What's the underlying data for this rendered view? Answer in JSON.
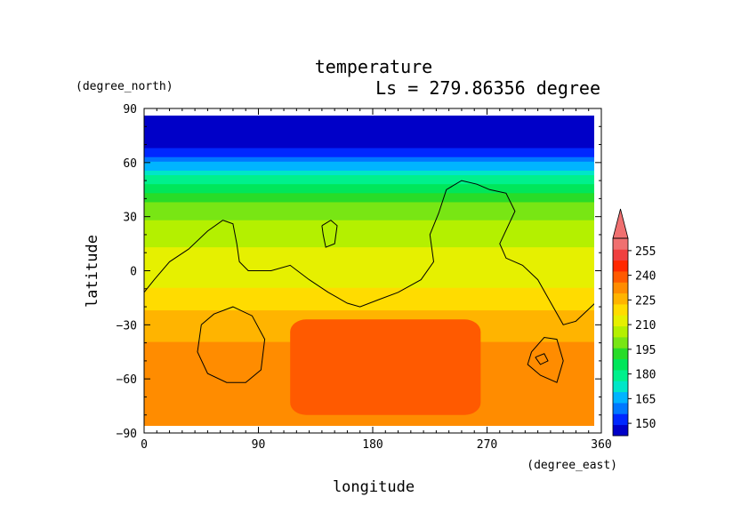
{
  "chart_data": {
    "type": "heatmap",
    "title": "temperature",
    "subtitle": "Ls = 279.86356 degree",
    "xlabel": "longitude",
    "ylabel": "latitude",
    "x_unit": "(degree_east)",
    "y_unit": "(degree_north)",
    "xlim": [
      0,
      360
    ],
    "ylim": [
      -90,
      90
    ],
    "x_ticks": [
      "0",
      "90",
      "180",
      "270",
      "360"
    ],
    "y_ticks": [
      "90",
      "60",
      "30",
      "0",
      "−30",
      "−60",
      "−90"
    ],
    "lat_profile": [
      {
        "lat": 85,
        "value": 145
      },
      {
        "lat": 70,
        "value": 147
      },
      {
        "lat": 65,
        "value": 152
      },
      {
        "lat": 60,
        "value": 162
      },
      {
        "lat": 55,
        "value": 172
      },
      {
        "lat": 50,
        "value": 180
      },
      {
        "lat": 45,
        "value": 188
      },
      {
        "lat": 40,
        "value": 195
      },
      {
        "lat": 30,
        "value": 202
      },
      {
        "lat": 20,
        "value": 208
      },
      {
        "lat": 10,
        "value": 210
      },
      {
        "lat": 0,
        "value": 213
      },
      {
        "lat": -10,
        "value": 216
      },
      {
        "lat": -20,
        "value": 222
      },
      {
        "lat": -30,
        "value": 228
      },
      {
        "lat": -45,
        "value": 230
      },
      {
        "lat": -60,
        "value": 230
      },
      {
        "lat": -75,
        "value": 232
      },
      {
        "lat": -85,
        "value": 232
      }
    ],
    "warm_region": {
      "lon_range": [
        115,
        265
      ],
      "lat_range": [
        -80,
        -27
      ],
      "value": 240
    },
    "colorbar": {
      "levels": [
        150,
        165,
        180,
        195,
        210,
        225,
        240,
        255
      ],
      "labels": [
        "150",
        "165",
        "180",
        "195",
        "210",
        "225",
        "240",
        "255"
      ],
      "colors": [
        "#0000c8",
        "#0028ff",
        "#0078ff",
        "#00b4ff",
        "#00e6c8",
        "#00f08c",
        "#00e65a",
        "#28dc28",
        "#78e614",
        "#b4f000",
        "#e6f000",
        "#ffdc00",
        "#ffb400",
        "#ff8c00",
        "#ff5a00",
        "#ff2800",
        "#f04040",
        "#f07070"
      ]
    },
    "topography_contours": [
      [
        [
          0,
          -12
        ],
        [
          8,
          -5
        ],
        [
          20,
          5
        ],
        [
          35,
          12
        ],
        [
          50,
          22
        ],
        [
          62,
          28
        ],
        [
          70,
          26
        ],
        [
          73,
          15
        ],
        [
          75,
          5
        ],
        [
          82,
          0
        ],
        [
          100,
          0
        ],
        [
          115,
          3
        ],
        [
          130,
          -5
        ],
        [
          145,
          -12
        ],
        [
          160,
          -18
        ],
        [
          170,
          -20
        ],
        [
          185,
          -16
        ],
        [
          200,
          -12
        ],
        [
          218,
          -5
        ],
        [
          228,
          5
        ],
        [
          225,
          20
        ],
        [
          232,
          32
        ],
        [
          238,
          45
        ],
        [
          250,
          50
        ],
        [
          262,
          48
        ],
        [
          272,
          45
        ],
        [
          285,
          43
        ],
        [
          292,
          33
        ],
        [
          280,
          15
        ],
        [
          285,
          7
        ],
        [
          298,
          3
        ],
        [
          310,
          -5
        ],
        [
          318,
          -15
        ],
        [
          330,
          -30
        ],
        [
          340,
          -28
        ],
        [
          355,
          -18
        ],
        [
          360,
          -14
        ]
      ],
      [
        [
          140,
          25
        ],
        [
          147,
          28
        ],
        [
          152,
          25
        ],
        [
          150,
          15
        ],
        [
          143,
          13
        ],
        [
          141,
          20
        ],
        [
          140,
          25
        ]
      ],
      [
        [
          45,
          -30
        ],
        [
          55,
          -24
        ],
        [
          70,
          -20
        ],
        [
          85,
          -25
        ],
        [
          95,
          -38
        ],
        [
          92,
          -55
        ],
        [
          80,
          -62
        ],
        [
          65,
          -62
        ],
        [
          50,
          -57
        ],
        [
          42,
          -45
        ],
        [
          45,
          -30
        ]
      ],
      [
        [
          305,
          -45
        ],
        [
          315,
          -37
        ],
        [
          325,
          -38
        ],
        [
          330,
          -50
        ],
        [
          325,
          -62
        ],
        [
          312,
          -58
        ],
        [
          302,
          -52
        ],
        [
          305,
          -45
        ]
      ],
      [
        [
          308,
          -48
        ],
        [
          315,
          -46
        ],
        [
          318,
          -50
        ],
        [
          312,
          -52
        ],
        [
          308,
          -48
        ]
      ]
    ]
  }
}
